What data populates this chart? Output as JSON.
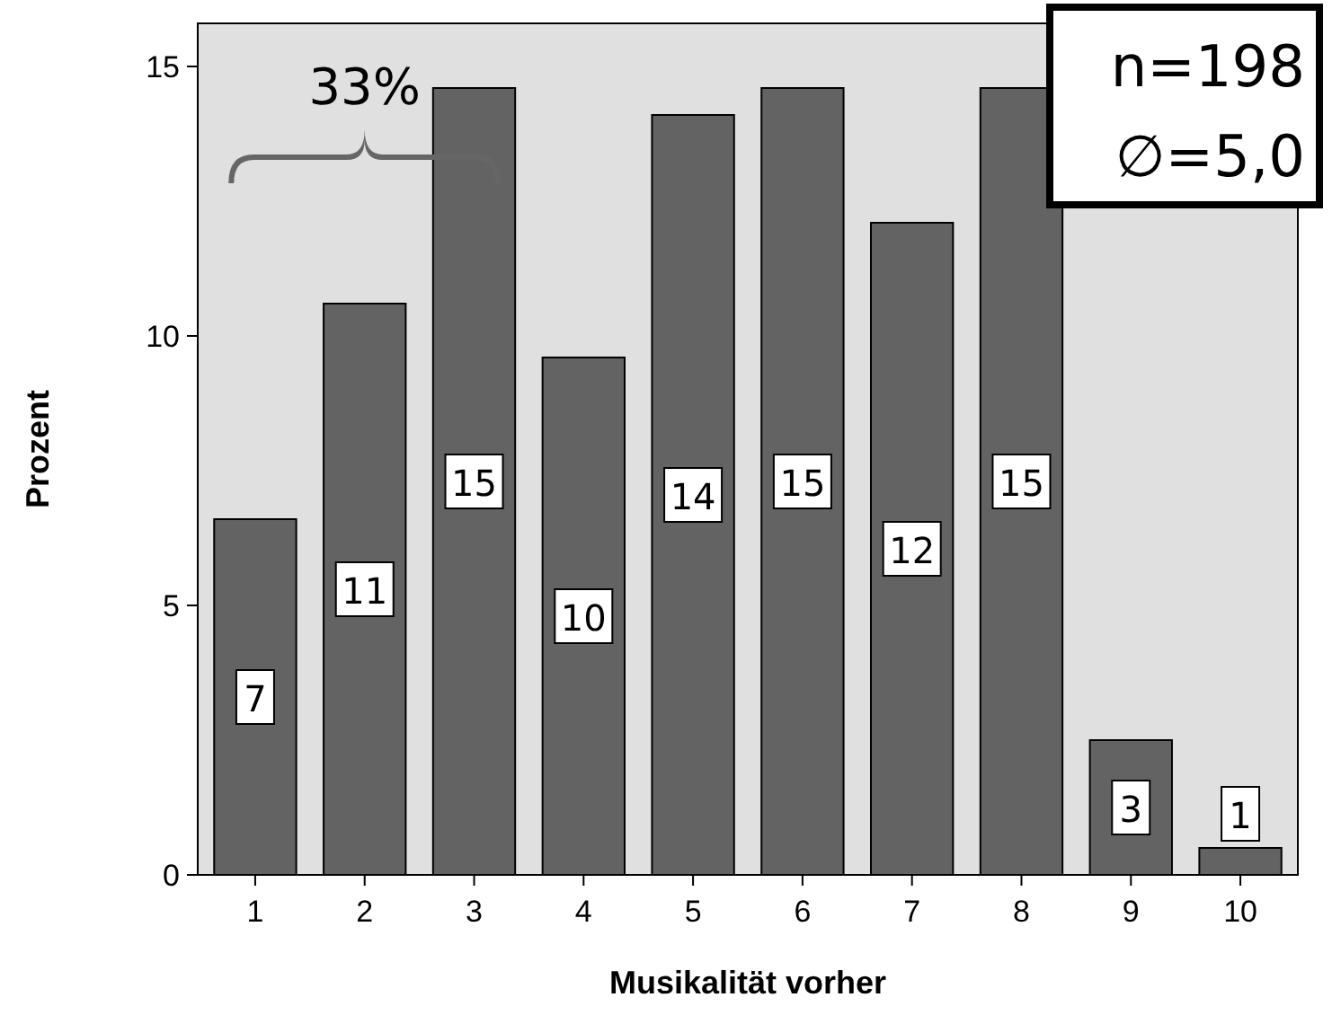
{
  "chart_data": {
    "type": "bar",
    "xlabel": "Musikalität vorher",
    "ylabel": "Prozent",
    "categories": [
      "1",
      "2",
      "3",
      "4",
      "5",
      "6",
      "7",
      "8",
      "9",
      "10"
    ],
    "values": [
      6.6,
      10.6,
      14.6,
      9.6,
      14.1,
      14.6,
      12.1,
      14.6,
      2.5,
      0.5
    ],
    "value_labels": [
      "7",
      "11",
      "15",
      "10",
      "14",
      "15",
      "12",
      "15",
      "3",
      "1"
    ],
    "color": "#636363",
    "ylim": [
      0,
      15.8
    ],
    "yticks": [
      0,
      5,
      10,
      15
    ],
    "grid": false,
    "annotations": [
      "33%",
      "n=198",
      "∅=5,0"
    ]
  }
}
